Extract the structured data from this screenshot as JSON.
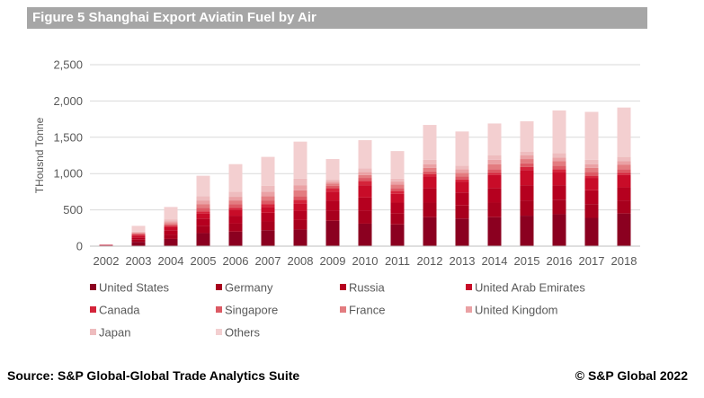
{
  "header": {
    "title": "Figure 5 Shanghai Export Aviatin Fuel by Air"
  },
  "footer": {
    "source": "Source: S&P Global-Global Trade Analytics Suite",
    "copyright": "©  S&P Global 2022"
  },
  "chart_data": {
    "type": "bar",
    "stacked": true,
    "title": "Figure 5 Shanghai Export Aviatin Fuel by Air",
    "xlabel": "",
    "ylabel": "THousnd Tonne",
    "ylim": [
      0,
      2500
    ],
    "yticks": [
      0,
      500,
      1000,
      1500,
      2000,
      2500
    ],
    "ytick_labels": [
      "0",
      "500",
      "1,000",
      "1,500",
      "2,000",
      "2,500"
    ],
    "grid": true,
    "legend_position": "bottom",
    "categories": [
      "2002",
      "2003",
      "2004",
      "2005",
      "2006",
      "2007",
      "2008",
      "2009",
      "2010",
      "2011",
      "2012",
      "2013",
      "2014",
      "2015",
      "2016",
      "2017",
      "2018"
    ],
    "series": [
      {
        "name": "United States",
        "color": "#8b0020",
        "values": [
          5,
          60,
          100,
          180,
          200,
          220,
          230,
          350,
          310,
          300,
          400,
          380,
          400,
          420,
          440,
          390,
          450
        ]
      },
      {
        "name": "Germany",
        "color": "#a8001d",
        "values": [
          5,
          30,
          60,
          100,
          110,
          120,
          130,
          140,
          180,
          150,
          200,
          180,
          200,
          210,
          200,
          190,
          180
        ]
      },
      {
        "name": "Russia",
        "color": "#b5001f",
        "values": [
          5,
          30,
          60,
          100,
          110,
          120,
          130,
          140,
          180,
          150,
          200,
          180,
          200,
          210,
          200,
          190,
          180
        ]
      },
      {
        "name": "United Arab Emirates",
        "color": "#c80c28",
        "values": [
          5,
          25,
          40,
          70,
          80,
          80,
          100,
          120,
          170,
          120,
          160,
          150,
          180,
          210,
          180,
          170,
          170
        ]
      },
      {
        "name": "Canada",
        "color": "#d4243a",
        "values": [
          0,
          15,
          20,
          30,
          30,
          40,
          50,
          50,
          60,
          40,
          30,
          30,
          30,
          40,
          40,
          30,
          30
        ]
      },
      {
        "name": "Singapore",
        "color": "#dc5a64",
        "values": [
          0,
          10,
          20,
          50,
          50,
          50,
          50,
          30,
          40,
          40,
          40,
          40,
          50,
          50,
          50,
          50,
          50
        ]
      },
      {
        "name": "France",
        "color": "#e37c80",
        "values": [
          0,
          10,
          20,
          50,
          50,
          60,
          80,
          30,
          40,
          50,
          50,
          50,
          70,
          60,
          60,
          60,
          60
        ]
      },
      {
        "name": "United Kingdom",
        "color": "#eaa1a4",
        "values": [
          0,
          10,
          20,
          50,
          50,
          60,
          70,
          30,
          40,
          40,
          50,
          50,
          60,
          50,
          50,
          50,
          50
        ]
      },
      {
        "name": "Japan",
        "color": "#eebcbe",
        "values": [
          0,
          10,
          30,
          60,
          70,
          80,
          90,
          30,
          50,
          40,
          60,
          50,
          60,
          50,
          60,
          60,
          60
        ]
      },
      {
        "name": "Others",
        "color": "#f3cfd0",
        "values": [
          0,
          80,
          170,
          280,
          380,
          400,
          510,
          280,
          390,
          380,
          480,
          470,
          440,
          420,
          590,
          660,
          680
        ]
      }
    ]
  }
}
